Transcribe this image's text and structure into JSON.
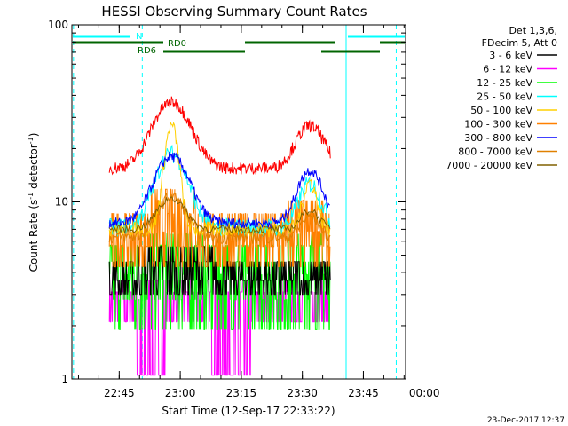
{
  "chart_data": {
    "type": "line",
    "title": "HESSI Observing Summary Count Rates",
    "ylabel": "Count Rate (s",
    "ylabel_sup1": "-1",
    "ylabel_mid": " detector",
    "ylabel_sup2": "-1",
    "ylabel_end": ")",
    "xlabel": "Start Time (12-Sep-17 22:33:22)",
    "y_scale": "log",
    "ylim": [
      1,
      100
    ],
    "y_tick_labels": [
      "1",
      "10",
      "100"
    ],
    "x_range_minutes": [
      0,
      82
    ],
    "x_ticks": [
      {
        "label": "22:45",
        "min": 11.63
      },
      {
        "label": "23:00",
        "min": 26.63
      },
      {
        "label": "23:15",
        "min": 41.63
      },
      {
        "label": "23:30",
        "min": 56.63
      },
      {
        "label": "23:45",
        "min": 71.63
      },
      {
        "label": "00:00",
        "min": 86.63
      }
    ],
    "legend_header": [
      "Det 1,3,6,",
      "FDecim 5, Att 0"
    ],
    "legend_position": "right",
    "series": [
      {
        "name": "3 - 6 keV",
        "color": "#000000"
      },
      {
        "name": "6 - 12 keV",
        "color": "#ff00ff"
      },
      {
        "name": "12 - 25 keV",
        "color": "#00ff00"
      },
      {
        "name": "25 - 50 keV",
        "color": "#00ffff"
      },
      {
        "name": "50 - 100 keV",
        "color": "#ffd000"
      },
      {
        "name": "100 - 300 keV",
        "color": "#ff8000"
      },
      {
        "name": "300 - 800 keV",
        "color": "#0000ff"
      },
      {
        "name": "800 - 7000 keV",
        "color": "#e08000"
      },
      {
        "name": "7000 - 20000 keV",
        "color": "#806000"
      }
    ],
    "flag_labels": {
      "night": "N",
      "rd0": "RD0",
      "rd6": "RD6"
    },
    "timestamp": "23-Dec-2017 12:37"
  }
}
